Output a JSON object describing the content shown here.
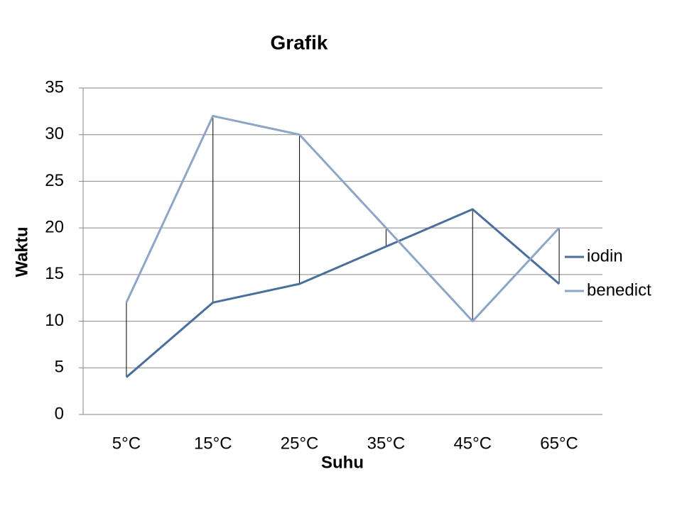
{
  "chart_data": {
    "type": "line",
    "title": "Grafik",
    "x_label": "Suhu",
    "y_label": "Waktu",
    "categories": [
      "5°C",
      "15°C",
      "25°C",
      "35°C",
      "45°C",
      "65°C"
    ],
    "series": [
      {
        "name": "iodin",
        "color": "#4a6f9d",
        "values": [
          4,
          12,
          14,
          18,
          22,
          14
        ]
      },
      {
        "name": "benedict",
        "color": "#8ea5c8",
        "values": [
          12,
          32,
          30,
          20,
          10,
          20
        ]
      }
    ],
    "ylim": [
      0,
      35
    ],
    "yticks": [
      0,
      5,
      10,
      15,
      20,
      25,
      30,
      35
    ],
    "grid": true,
    "high_low_lines": true,
    "legend": "right"
  }
}
